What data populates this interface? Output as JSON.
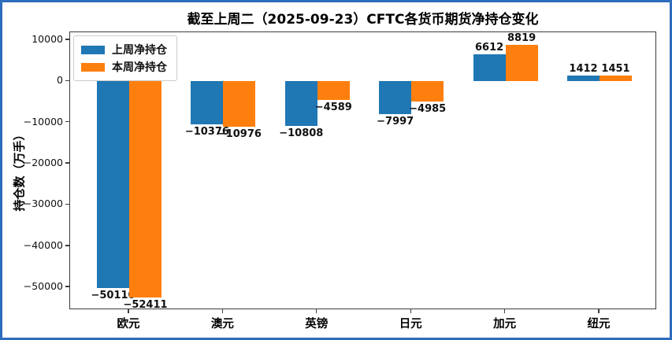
{
  "figure": {
    "border_color": "#2e6cbe",
    "background_color": "#ffffff",
    "spine_color": "#3d3d3d"
  },
  "chart_data": {
    "type": "bar",
    "title": "截至上周二（2025-09-23）CFTC各货币期货净持仓变化",
    "xlabel": "",
    "ylabel": "持仓数（万手）",
    "categories": [
      "欧元",
      "澳元",
      "英镑",
      "日元",
      "加元",
      "纽元"
    ],
    "series": [
      {
        "name": "上周净持仓",
        "color": "#1f77b4",
        "values": [
          -50110,
          -10376,
          -10808,
          -7997,
          6612,
          1412
        ]
      },
      {
        "name": "本周净持仓",
        "color": "#ff7f0e",
        "values": [
          -52411,
          -10976,
          -4589,
          -4985,
          8819,
          1451
        ]
      }
    ],
    "bar_value_labels": [
      [
        "−50110",
        "−10376",
        "−10808",
        "−7997",
        "6612",
        "1412"
      ],
      [
        "−52411",
        "−10976",
        "−4589",
        "−4985",
        "8819",
        "1451"
      ]
    ],
    "yticks": [
      10000,
      0,
      -10000,
      -20000,
      -30000,
      -40000,
      -50000
    ],
    "ytick_labels": [
      "10000",
      "0",
      "−10000",
      "−20000",
      "−30000",
      "−40000",
      "−50000"
    ],
    "ylim": [
      -55500,
      11900
    ],
    "grid": false,
    "legend_position": "upper left"
  }
}
